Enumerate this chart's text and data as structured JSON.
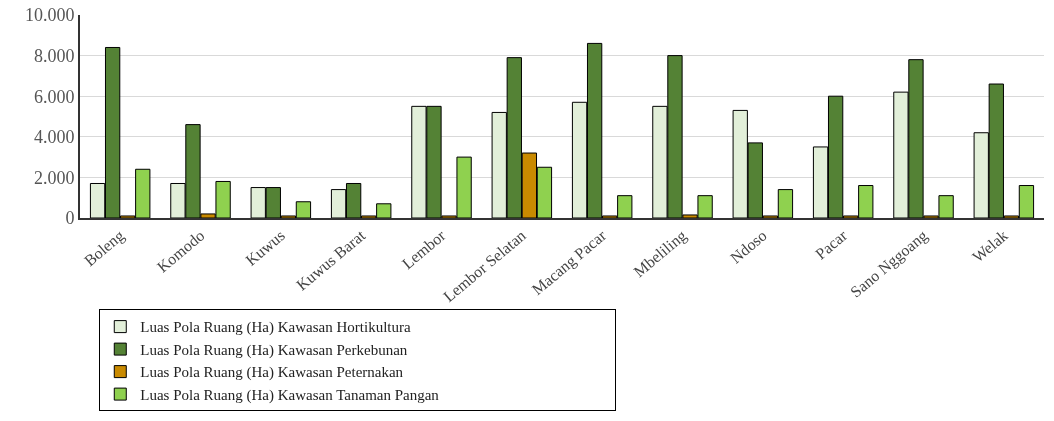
{
  "chart_data": {
    "type": "bar",
    "categories": [
      "Boleng",
      "Komodo",
      "Kuwus",
      "Kuwus Barat",
      "Lembor",
      "Lembor Selatan",
      "Macang Pacar",
      "Mbeliling",
      "Ndoso",
      "Pacar",
      "Sano Nggoang",
      "Welak"
    ],
    "series": [
      {
        "name": "Luas Pola Ruang (Ha) Kawasan Hortikultura",
        "color": "#e2efd9",
        "values": [
          1700,
          1700,
          1500,
          1400,
          5500,
          5200,
          5700,
          5500,
          5300,
          3500,
          6200,
          4200
        ]
      },
      {
        "name": "Luas Pola Ruang (Ha) Kawasan Perkebunan",
        "color": "#548235",
        "values": [
          8400,
          4600,
          1500,
          1700,
          5500,
          7900,
          8600,
          8000,
          3700,
          6000,
          7800,
          6600
        ]
      },
      {
        "name": "Luas Pola Ruang (Ha) Kawasan Peternakan",
        "color": "#c98a00",
        "values": [
          100,
          200,
          100,
          100,
          100,
          3200,
          100,
          150,
          100,
          100,
          100,
          100
        ]
      },
      {
        "name": "Luas Pola Ruang (Ha) Kawasan Tanaman Pangan",
        "color": "#8fd14f",
        "values": [
          2400,
          1800,
          800,
          700,
          3000,
          2500,
          1100,
          1100,
          1400,
          1600,
          1100,
          1600
        ]
      }
    ],
    "ylim": [
      0,
      10000
    ],
    "yticks": [
      0,
      {
        "value": 2000,
        "label": "2.000"
      },
      {
        "value": 4000,
        "label": "4.000"
      },
      {
        "value": 6000,
        "label": "6.000"
      },
      {
        "value": 8000,
        "label": "8.000"
      },
      {
        "value": 10000,
        "label": "10.000"
      }
    ],
    "grid": "y",
    "legend": "bottom"
  }
}
